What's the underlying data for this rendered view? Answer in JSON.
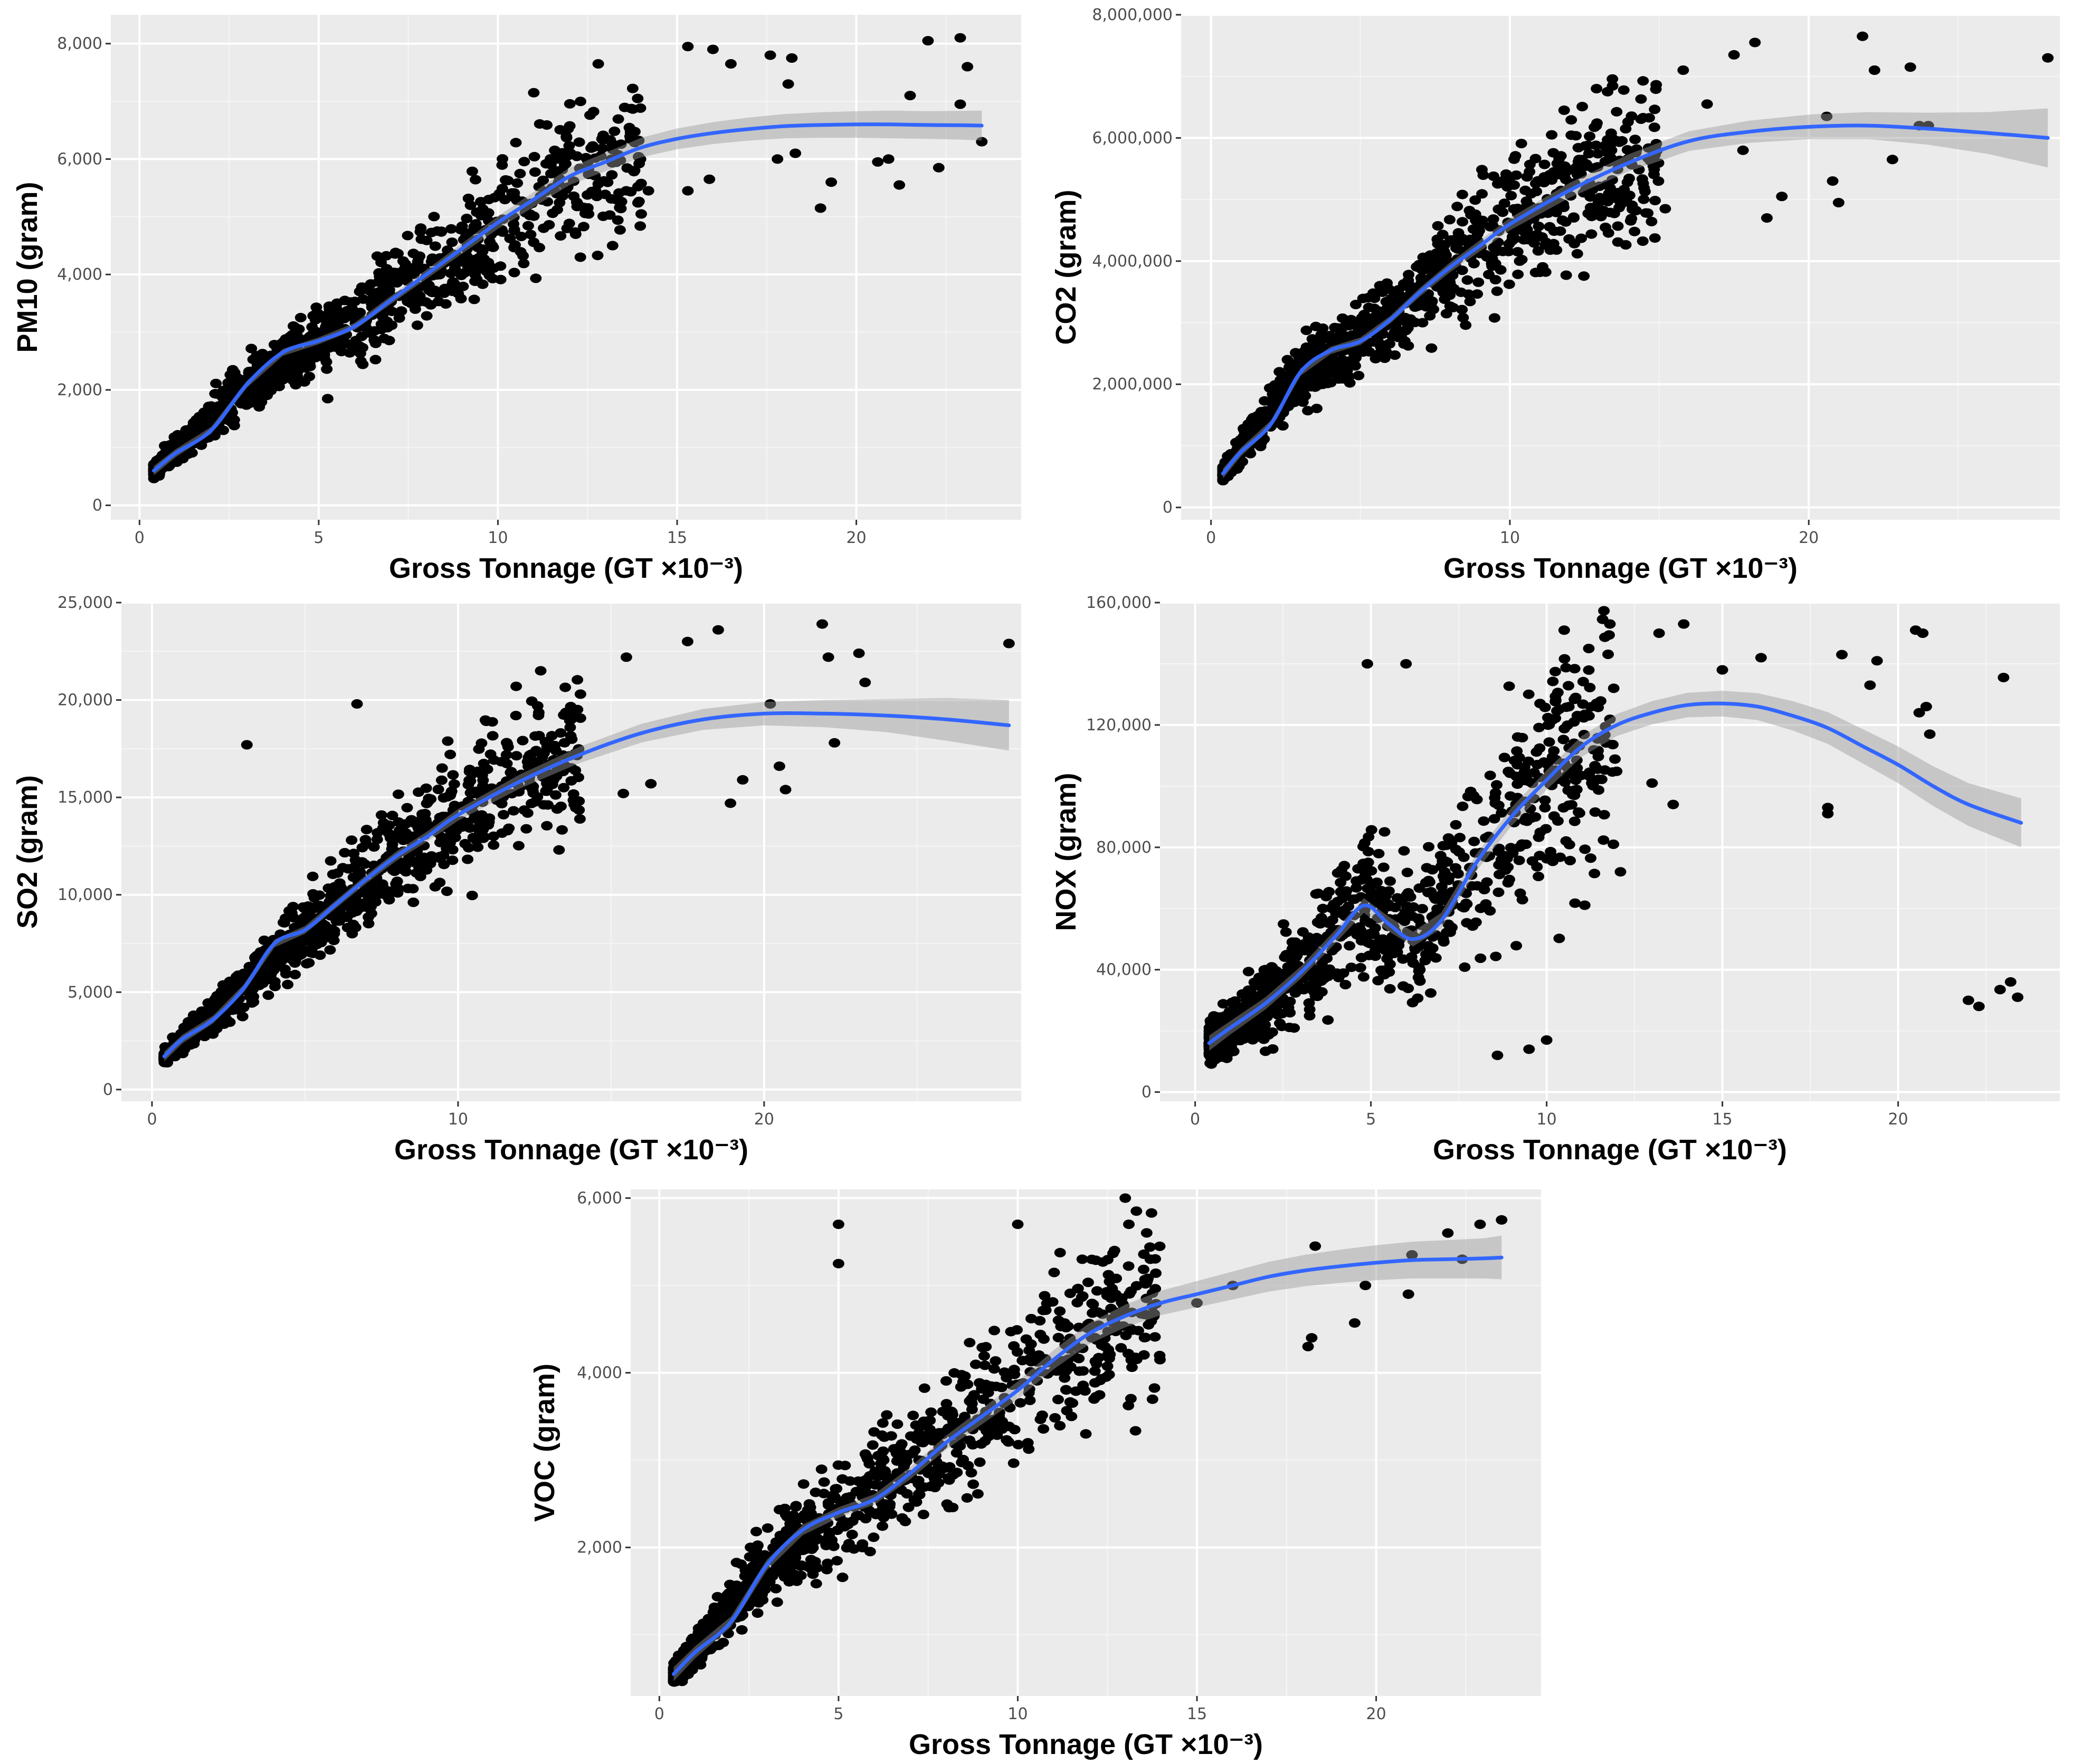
{
  "figure": {
    "colors": {
      "panel_bg": "#ebebeb",
      "grid": "#ffffff",
      "points": "#000000",
      "smooth": "#3366ff",
      "band": "#999999"
    }
  },
  "chart_data": [
    {
      "id": "pm10",
      "type": "scatter",
      "xlabel": "Gross Tonnage (GT ×10⁻³)",
      "ylabel": "PM10 (gram)",
      "xlim": [
        -0.8,
        24.6
      ],
      "ylim": [
        -250,
        8500
      ],
      "xticks": [
        0,
        5,
        10,
        15,
        20
      ],
      "xtick_labels": [
        "0",
        "5",
        "10",
        "15",
        "20"
      ],
      "yticks": [
        0,
        2000,
        4000,
        6000,
        8000
      ],
      "ytick_labels": [
        "0",
        "2,000",
        "4,000",
        "6,000",
        "8,000"
      ],
      "smooth": {
        "x": [
          0.4,
          1,
          2,
          3,
          4,
          5,
          6,
          7,
          8,
          9,
          10,
          11,
          12,
          13,
          14,
          15,
          16,
          17,
          18,
          19,
          20,
          21,
          22,
          23,
          23.5
        ],
        "y": [
          600,
          900,
          1300,
          2100,
          2650,
          2850,
          3100,
          3550,
          4000,
          4450,
          4900,
          5300,
          5700,
          5950,
          6200,
          6350,
          6450,
          6520,
          6570,
          6590,
          6600,
          6600,
          6590,
          6585,
          6580
        ],
        "band": [
          80,
          70,
          60,
          60,
          60,
          60,
          60,
          70,
          80,
          90,
          110,
          130,
          150,
          160,
          170,
          180,
          190,
          200,
          210,
          220,
          230,
          240,
          240,
          250,
          260
        ]
      },
      "trend": {
        "x": [
          0.4,
          3,
          5,
          8,
          12,
          16,
          20,
          23.5
        ],
        "y": [
          600,
          2100,
          2850,
          4000,
          5700,
          6450,
          6600,
          6580
        ]
      },
      "dense": {
        "n": 1100,
        "xmin": 0.4,
        "xmax": 14,
        "spread": 0.2
      },
      "outliers": [
        [
          15.3,
          7950
        ],
        [
          16.5,
          7650
        ],
        [
          17.6,
          7800
        ],
        [
          18.2,
          7750
        ],
        [
          22.0,
          8050
        ],
        [
          22.9,
          8100
        ],
        [
          23.1,
          7600
        ],
        [
          15.3,
          5450
        ],
        [
          15.9,
          5650
        ],
        [
          17.8,
          6000
        ],
        [
          18.3,
          6100
        ],
        [
          19.0,
          5150
        ],
        [
          19.3,
          5600
        ],
        [
          20.6,
          5950
        ],
        [
          20.9,
          6000
        ],
        [
          21.2,
          5550
        ],
        [
          21.5,
          7100
        ],
        [
          22.3,
          5850
        ],
        [
          22.9,
          6950
        ],
        [
          23.5,
          6300
        ],
        [
          12.8,
          7650
        ],
        [
          13.9,
          7050
        ],
        [
          11.0,
          7150
        ],
        [
          16.0,
          7900
        ],
        [
          12.3,
          4300
        ],
        [
          13.2,
          4500
        ],
        [
          14.2,
          5450
        ],
        [
          18.1,
          7300
        ]
      ]
    },
    {
      "id": "co2",
      "type": "scatter",
      "xlabel": "Gross Tonnage (GT ×10⁻³)",
      "ylabel": "CO2 (gram)",
      "xlim": [
        -1.0,
        28.4
      ],
      "ylim": [
        -200000,
        8000000
      ],
      "xticks": [
        0,
        10,
        20
      ],
      "xtick_labels": [
        "0",
        "10",
        "20"
      ],
      "yticks": [
        0,
        2000000,
        4000000,
        6000000,
        8000000
      ],
      "ytick_labels": [
        "0",
        "2,000,000",
        "4,000,000",
        "6,000,000",
        "8,000,000"
      ],
      "smooth": {
        "x": [
          0.4,
          1,
          2,
          3,
          4,
          5,
          6,
          7,
          8,
          9,
          10,
          12,
          14,
          16,
          18,
          20,
          22,
          24,
          26,
          28
        ],
        "y": [
          550000,
          900000,
          1350000,
          2200000,
          2550000,
          2700000,
          3050000,
          3500000,
          3900000,
          4250000,
          4600000,
          5150000,
          5600000,
          5950000,
          6100000,
          6180000,
          6200000,
          6150000,
          6080000,
          6000000
        ],
        "band": [
          80000,
          70000,
          60000,
          60000,
          60000,
          60000,
          60000,
          70000,
          80000,
          90000,
          100000,
          120000,
          140000,
          160000,
          180000,
          200000,
          220000,
          260000,
          340000,
          480000
        ]
      },
      "trend": {
        "x": [
          0.4,
          3,
          5,
          8,
          12,
          18,
          22,
          28
        ],
        "y": [
          550000,
          2200000,
          2700000,
          3900000,
          5150000,
          6100000,
          6200000,
          6000000
        ]
      },
      "dense": {
        "n": 1100,
        "xmin": 0.4,
        "xmax": 15,
        "spread": 0.2
      },
      "outliers": [
        [
          18.2,
          7550
        ],
        [
          21.8,
          7650
        ],
        [
          22.2,
          7100
        ],
        [
          23.4,
          7150
        ],
        [
          28.0,
          7300
        ],
        [
          17.5,
          7350
        ],
        [
          15.8,
          7100
        ],
        [
          16.6,
          6550
        ],
        [
          20.8,
          5300
        ],
        [
          21.0,
          4950
        ],
        [
          22.8,
          5650
        ],
        [
          23.7,
          6200
        ],
        [
          19.1,
          5050
        ],
        [
          18.6,
          4700
        ],
        [
          17.8,
          5800
        ],
        [
          24.0,
          6200
        ],
        [
          20.6,
          6350
        ],
        [
          15.2,
          4850
        ],
        [
          12.9,
          6800
        ],
        [
          11.4,
          6050
        ],
        [
          13.4,
          5800
        ]
      ],
      "outlier_scale": 1000
    },
    {
      "id": "so2",
      "type": "scatter",
      "xlabel": "Gross Tonnage (GT ×10⁻³)",
      "ylabel": "SO2 (gram)",
      "xlim": [
        -1.0,
        28.4
      ],
      "ylim": [
        -600,
        25000
      ],
      "xticks": [
        0,
        10,
        20
      ],
      "xtick_labels": [
        "0",
        "10",
        "20"
      ],
      "yticks": [
        0,
        5000,
        10000,
        15000,
        20000,
        25000
      ],
      "ytick_labels": [
        "0",
        "5,000",
        "10,000",
        "15,000",
        "20,000",
        "25,000"
      ],
      "smooth": {
        "x": [
          0.4,
          1,
          2,
          3,
          4,
          5,
          6,
          7,
          8,
          9,
          10,
          12,
          14,
          16,
          18,
          20,
          22,
          24,
          26,
          28
        ],
        "y": [
          1700,
          2600,
          3600,
          5200,
          7500,
          8200,
          9500,
          10800,
          12000,
          13000,
          14100,
          15800,
          17200,
          18300,
          19000,
          19300,
          19300,
          19200,
          19000,
          18700
        ],
        "band": [
          250,
          220,
          200,
          200,
          200,
          200,
          200,
          220,
          240,
          260,
          300,
          360,
          420,
          480,
          540,
          600,
          700,
          850,
          1100,
          1300
        ]
      },
      "trend": {
        "x": [
          0.4,
          3,
          5,
          8,
          12,
          18,
          22,
          28
        ],
        "y": [
          1700,
          5200,
          8200,
          12000,
          15800,
          19000,
          19300,
          18700
        ]
      },
      "dense": {
        "n": 1100,
        "xmin": 0.4,
        "xmax": 14,
        "spread": 0.2
      },
      "outliers": [
        [
          18.5,
          23600
        ],
        [
          21.9,
          23900
        ],
        [
          22.1,
          22200
        ],
        [
          23.1,
          22400
        ],
        [
          28.0,
          22900
        ],
        [
          17.5,
          23000
        ],
        [
          15.5,
          22200
        ],
        [
          20.5,
          16600
        ],
        [
          20.7,
          15400
        ],
        [
          22.3,
          17800
        ],
        [
          23.3,
          20900
        ],
        [
          18.9,
          14700
        ],
        [
          19.3,
          15900
        ],
        [
          16.3,
          15700
        ],
        [
          20.2,
          19800
        ],
        [
          15.4,
          15200
        ],
        [
          12.7,
          21500
        ],
        [
          14.0,
          20300
        ],
        [
          13.3,
          12300
        ],
        [
          11.9,
          20700
        ],
        [
          3.1,
          17700
        ],
        [
          6.7,
          19800
        ]
      ]
    },
    {
      "id": "nox",
      "type": "scatter",
      "xlabel": "Gross Tonnage (GT ×10⁻³)",
      "ylabel": "NOX (gram)",
      "xlim": [
        -1.0,
        24.6
      ],
      "ylim": [
        -3000,
        160000
      ],
      "xticks": [
        0,
        5,
        10,
        15,
        20
      ],
      "xtick_labels": [
        "0",
        "5",
        "10",
        "15",
        "20"
      ],
      "yticks": [
        0,
        40000,
        80000,
        120000,
        160000
      ],
      "ytick_labels": [
        "0",
        "40,000",
        "80,000",
        "120,000",
        "160,000"
      ],
      "smooth": {
        "x": [
          0.4,
          1,
          2,
          3,
          4,
          4.8,
          5.5,
          6.2,
          7,
          8,
          9,
          10,
          11,
          12,
          13,
          14,
          15,
          16,
          17,
          18,
          19,
          20,
          21,
          22,
          23.5
        ],
        "y": [
          16000,
          21000,
          29000,
          39000,
          51000,
          61000,
          55000,
          50000,
          56000,
          75000,
          90000,
          102000,
          113000,
          120000,
          124000,
          126500,
          127000,
          126000,
          123000,
          119000,
          113000,
          107000,
          100000,
          94000,
          88000
        ],
        "band": [
          2500,
          2200,
          2000,
          2000,
          2200,
          2400,
          2400,
          2400,
          2600,
          2800,
          3000,
          3200,
          3400,
          3600,
          3800,
          4000,
          4200,
          4400,
          4800,
          5200,
          5600,
          6000,
          6500,
          7000,
          8000
        ]
      },
      "trend": {
        "x": [
          0.4,
          2,
          4,
          4.8,
          6.2,
          8,
          10,
          12,
          15,
          23.5
        ],
        "y": [
          16000,
          29000,
          51000,
          61000,
          50000,
          75000,
          102000,
          120000,
          127000,
          88000
        ]
      },
      "dense": {
        "n": 1000,
        "xmin": 0.4,
        "xmax": 12,
        "spread": 0.35
      },
      "outliers": [
        [
          22.0,
          30000
        ],
        [
          22.3,
          28000
        ],
        [
          22.9,
          33500
        ],
        [
          23.2,
          36000
        ],
        [
          23.4,
          31000
        ],
        [
          18.0,
          91000
        ],
        [
          18.0,
          93000
        ],
        [
          20.5,
          151000
        ],
        [
          20.7,
          150000
        ],
        [
          20.8,
          126000
        ],
        [
          20.6,
          124000
        ],
        [
          20.9,
          117000
        ],
        [
          23.0,
          135500
        ],
        [
          18.4,
          143000
        ],
        [
          19.2,
          133000
        ],
        [
          19.4,
          141000
        ],
        [
          16.1,
          142000
        ],
        [
          15.0,
          138000
        ],
        [
          13.9,
          153000
        ],
        [
          13.2,
          150000
        ],
        [
          11.8,
          153000
        ],
        [
          10.5,
          151000
        ],
        [
          11.2,
          145000
        ],
        [
          12.1,
          72000
        ],
        [
          11.9,
          81000
        ],
        [
          13.6,
          94000
        ],
        [
          13.0,
          101000
        ],
        [
          9.5,
          14000
        ],
        [
          10.0,
          17000
        ],
        [
          8.6,
          12000
        ],
        [
          4.9,
          140000
        ],
        [
          6.0,
          140000
        ]
      ]
    },
    {
      "id": "voc",
      "type": "scatter",
      "xlabel": "Gross Tonnage (GT ×10⁻³)",
      "ylabel": "VOC (gram)",
      "xlim": [
        -0.8,
        24.6
      ],
      "ylim": [
        300,
        6100
      ],
      "xticks": [
        0,
        5,
        10,
        15,
        20
      ],
      "xtick_labels": [
        "0",
        "5",
        "10",
        "15",
        "20"
      ],
      "yticks": [
        2000,
        4000,
        6000
      ],
      "ytick_labels": [
        "2,000",
        "4,000",
        "6,000"
      ],
      "smooth": {
        "x": [
          0.4,
          1,
          2,
          3,
          4,
          5,
          6,
          7,
          8,
          9,
          10,
          11,
          12,
          13,
          14,
          15,
          16,
          17,
          18,
          19,
          20,
          21,
          22,
          23,
          23.5
        ],
        "y": [
          550,
          800,
          1150,
          1800,
          2200,
          2400,
          2550,
          2850,
          3200,
          3500,
          3800,
          4150,
          4450,
          4650,
          4800,
          4900,
          5000,
          5100,
          5170,
          5220,
          5260,
          5290,
          5300,
          5310,
          5320
        ],
        "band": [
          80,
          70,
          60,
          60,
          60,
          60,
          60,
          70,
          80,
          90,
          100,
          110,
          120,
          130,
          140,
          150,
          160,
          170,
          180,
          190,
          200,
          210,
          220,
          230,
          250
        ]
      },
      "trend": {
        "x": [
          0.4,
          3,
          5,
          8,
          12,
          16,
          20,
          23.5
        ],
        "y": [
          550,
          1800,
          2400,
          3200,
          4450,
          5000,
          5260,
          5320
        ]
      },
      "dense": {
        "n": 1100,
        "xmin": 0.4,
        "xmax": 14,
        "spread": 0.2
      },
      "outliers": [
        [
          18.3,
          5450
        ],
        [
          18.2,
          4400
        ],
        [
          18.1,
          4300
        ],
        [
          19.4,
          4570
        ],
        [
          20.9,
          4900
        ],
        [
          21.0,
          5350
        ],
        [
          22.0,
          5600
        ],
        [
          22.9,
          5700
        ],
        [
          23.5,
          5750
        ],
        [
          19.7,
          5000
        ],
        [
          22.4,
          5300
        ],
        [
          15.0,
          4800
        ],
        [
          16.0,
          5000
        ],
        [
          13.0,
          6000
        ],
        [
          13.1,
          5700
        ],
        [
          12.7,
          5400
        ],
        [
          13.7,
          5300
        ],
        [
          10.0,
          5700
        ],
        [
          11.8,
          5300
        ],
        [
          11.9,
          3300
        ],
        [
          11.5,
          3500
        ],
        [
          5.0,
          5700
        ],
        [
          5.0,
          5250
        ]
      ]
    }
  ]
}
